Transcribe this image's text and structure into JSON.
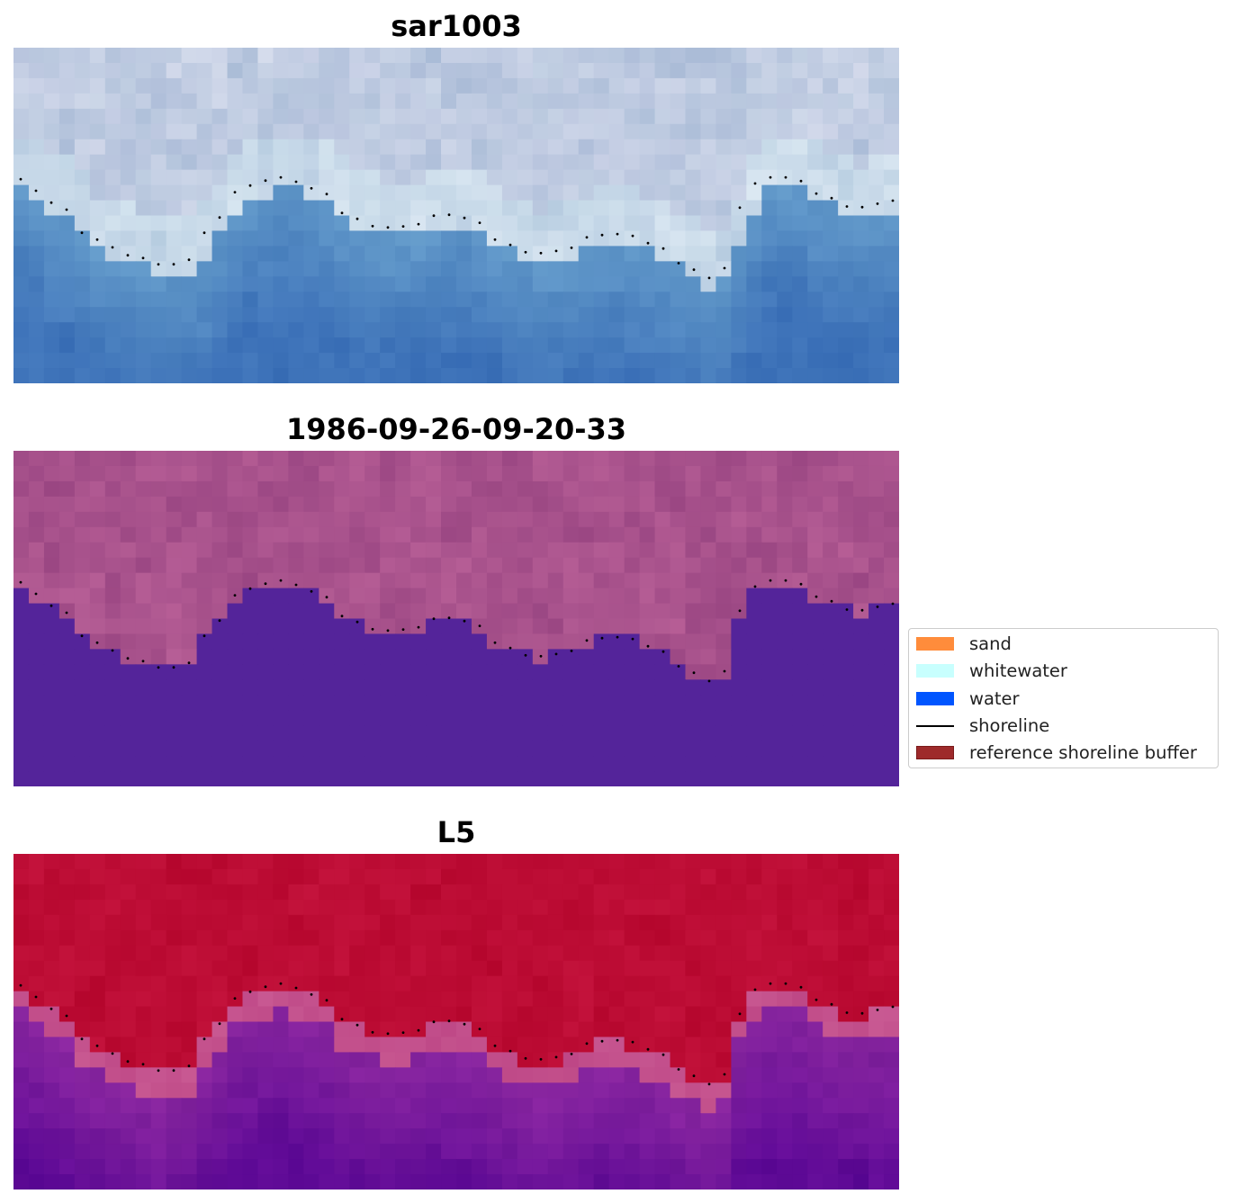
{
  "panels": [
    {
      "id": "rgb",
      "title": "sar1003",
      "colormap": "rgb"
    },
    {
      "id": "classified",
      "title": "1986-09-26-09-20-33",
      "colormap": "classified"
    },
    {
      "id": "index",
      "title": "L5",
      "colormap": "index"
    }
  ],
  "legend": {
    "items": [
      {
        "label": "sand",
        "color": "#ff8c3b",
        "kind": "patch"
      },
      {
        "label": "whitewater",
        "color": "#c8fffe",
        "kind": "patch"
      },
      {
        "label": "water",
        "color": "#0055ff",
        "kind": "patch"
      },
      {
        "label": "shoreline",
        "color": "#000000",
        "kind": "line"
      },
      {
        "label": "reference shoreline buffer",
        "color": "#9e2a2b",
        "edge": "#7a1a1a",
        "kind": "patch"
      }
    ]
  },
  "colors": {
    "water_class": "#54249a",
    "land_class": "#a9508c",
    "shoreline_dots": "#000000"
  }
}
